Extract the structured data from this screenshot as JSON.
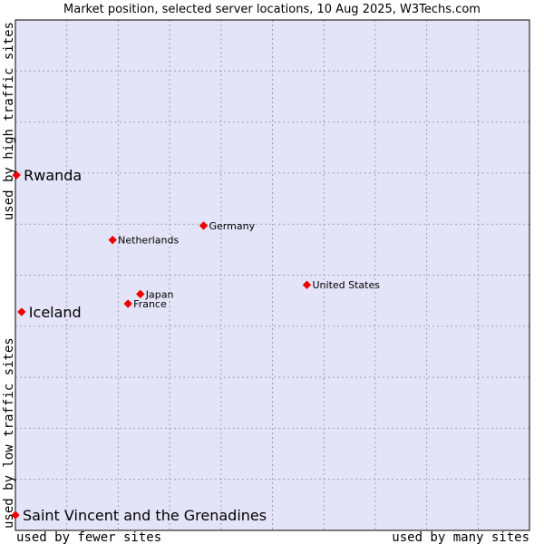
{
  "chart_data": {
    "type": "scatter",
    "title": "Market position, selected server locations, 10 Aug 2025, W3Techs.com",
    "xlabel_left": "used by fewer sites",
    "xlabel_right": "used by many sites",
    "ylabel_bottom": "used by low traffic sites",
    "ylabel_top": "used by high traffic sites",
    "xlim": [
      0,
      100
    ],
    "ylim": [
      0,
      100
    ],
    "grid": true,
    "points": [
      {
        "name": "Rwanda",
        "x": 0.2,
        "y": 69.6,
        "label_size": "big"
      },
      {
        "name": "Iceland",
        "x": 1.2,
        "y": 42.8,
        "label_size": "big"
      },
      {
        "name": "Saint Vincent and the Grenadines",
        "x": 0.0,
        "y": 3.0,
        "label_size": "big"
      },
      {
        "name": "Germany",
        "x": 36.6,
        "y": 59.7,
        "label_size": "small"
      },
      {
        "name": "Netherlands",
        "x": 18.9,
        "y": 56.9,
        "label_size": "small"
      },
      {
        "name": "Japan",
        "x": 24.3,
        "y": 46.3,
        "label_size": "small"
      },
      {
        "name": "France",
        "x": 21.9,
        "y": 44.4,
        "label_size": "small"
      },
      {
        "name": "United States",
        "x": 56.7,
        "y": 48.1,
        "label_size": "small"
      }
    ]
  },
  "colors": {
    "plot_background": "#e4e4f8",
    "marker": "#ee0000",
    "grid": "#a0a0b8",
    "frame": "#000000"
  }
}
